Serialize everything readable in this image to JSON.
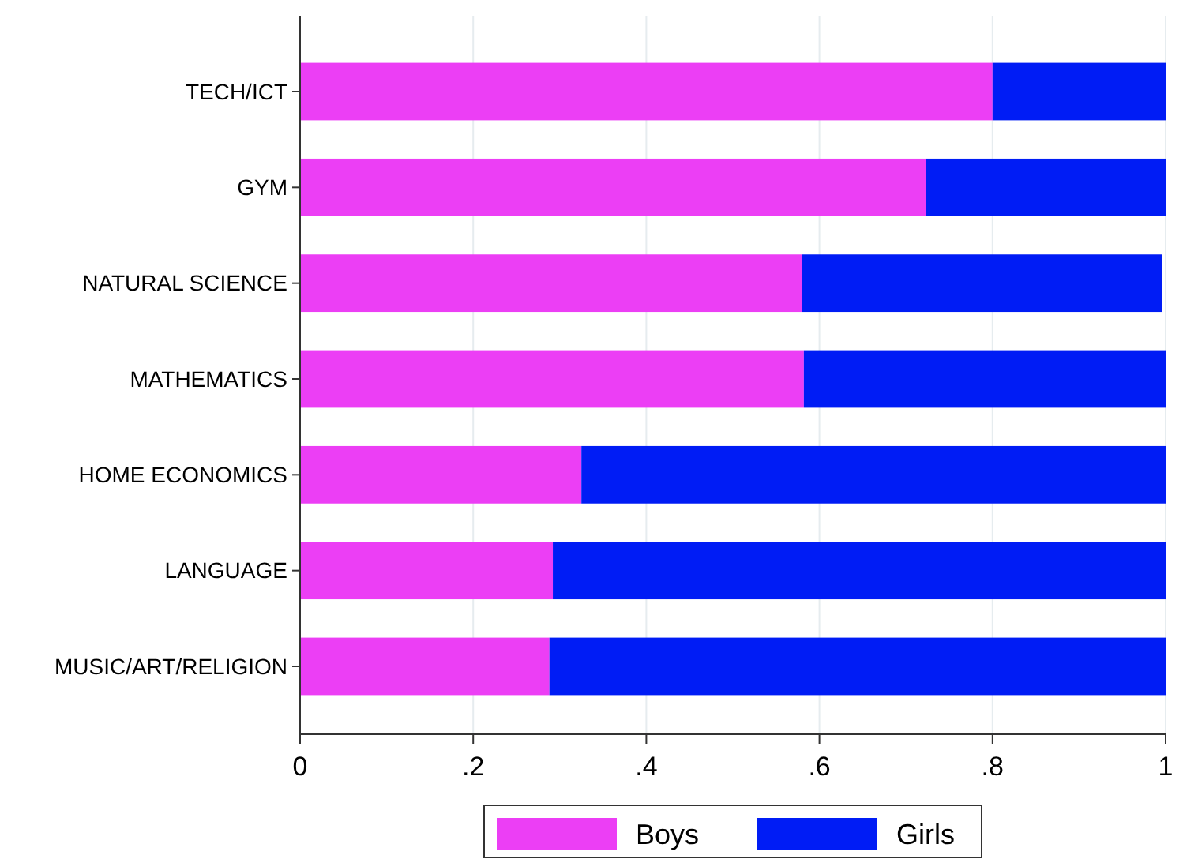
{
  "chart_data": {
    "type": "bar",
    "orientation": "horizontal",
    "stacked": true,
    "categories": [
      "TECH/ICT",
      "GYM",
      "NATURAL SCIENCE",
      "MATHEMATICS",
      "HOME ECONOMICS",
      "LANGUAGE",
      "MUSIC/ART/RELIGION"
    ],
    "series": [
      {
        "name": "Boys",
        "color": "#ec3ef5",
        "values": [
          0.8,
          0.723,
          0.58,
          0.582,
          0.325,
          0.292,
          0.288
        ]
      },
      {
        "name": "Girls",
        "color": "#001cf5",
        "values": [
          0.2,
          0.277,
          0.416,
          0.418,
          0.675,
          0.708,
          0.712
        ]
      }
    ],
    "xlim": [
      0,
      1
    ],
    "xticks": [
      0,
      {
        "value": 0.2,
        "label": ".2"
      },
      {
        "value": 0.4,
        "label": ".4"
      },
      {
        "value": 0.6,
        "label": ".6"
      },
      {
        "value": 0.8,
        "label": ".8"
      },
      1
    ],
    "grid": "x",
    "legend": "bottom"
  }
}
